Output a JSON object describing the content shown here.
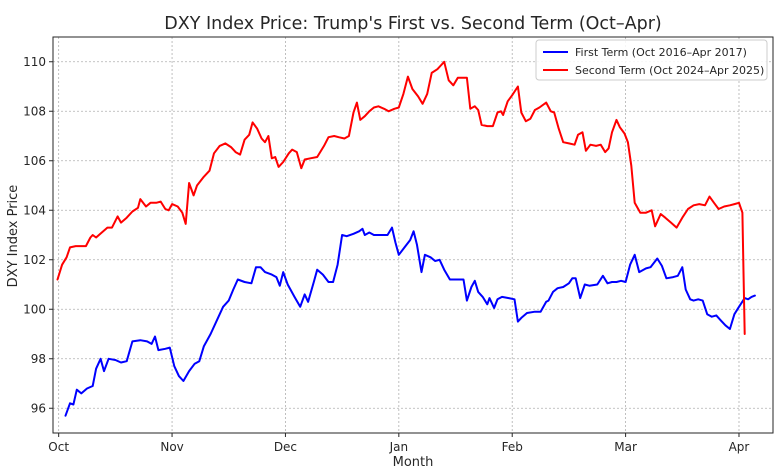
{
  "chart_data": {
    "type": "line",
    "title": "DXY Index Price: Trump's First vs. Second Term (Oct–Apr)",
    "xlabel": "Month",
    "ylabel": "DXY Index Price",
    "x_tick_labels": [
      "Oct",
      "Nov",
      "Dec",
      "Jan",
      "Feb",
      "Mar",
      "Apr"
    ],
    "x_unit": "months since Oct 1",
    "xlim": [
      -0.05,
      6.3
    ],
    "yticks": [
      96,
      98,
      100,
      102,
      104,
      106,
      108,
      110
    ],
    "ylim": [
      95.0,
      111.0
    ],
    "grid": true,
    "legend_position": "top-right",
    "series": [
      {
        "name": "First Term (Oct 2016–Apr 2017)",
        "color": "#0000ff",
        "points": [
          [
            0.06,
            95.7
          ],
          [
            0.1,
            96.2
          ],
          [
            0.13,
            96.15
          ],
          [
            0.16,
            96.75
          ],
          [
            0.2,
            96.6
          ],
          [
            0.25,
            96.8
          ],
          [
            0.3,
            96.9
          ],
          [
            0.33,
            97.6
          ],
          [
            0.37,
            98.0
          ],
          [
            0.4,
            97.5
          ],
          [
            0.44,
            98.0
          ],
          [
            0.5,
            97.95
          ],
          [
            0.55,
            97.85
          ],
          [
            0.6,
            97.9
          ],
          [
            0.65,
            98.7
          ],
          [
            0.72,
            98.75
          ],
          [
            0.78,
            98.7
          ],
          [
            0.82,
            98.6
          ],
          [
            0.85,
            98.9
          ],
          [
            0.88,
            98.35
          ],
          [
            0.94,
            98.4
          ],
          [
            0.98,
            98.45
          ],
          [
            1.02,
            97.7
          ],
          [
            1.06,
            97.3
          ],
          [
            1.1,
            97.1
          ],
          [
            1.15,
            97.5
          ],
          [
            1.2,
            97.8
          ],
          [
            1.24,
            97.9
          ],
          [
            1.28,
            98.5
          ],
          [
            1.34,
            99.0
          ],
          [
            1.4,
            99.6
          ],
          [
            1.45,
            100.1
          ],
          [
            1.5,
            100.35
          ],
          [
            1.54,
            100.8
          ],
          [
            1.58,
            101.2
          ],
          [
            1.64,
            101.1
          ],
          [
            1.7,
            101.05
          ],
          [
            1.74,
            101.7
          ],
          [
            1.78,
            101.7
          ],
          [
            1.82,
            101.5
          ],
          [
            1.88,
            101.4
          ],
          [
            1.92,
            101.3
          ],
          [
            1.95,
            100.95
          ],
          [
            1.98,
            101.5
          ],
          [
            2.02,
            101.0
          ],
          [
            2.08,
            100.5
          ],
          [
            2.13,
            100.1
          ],
          [
            2.17,
            100.6
          ],
          [
            2.2,
            100.3
          ],
          [
            2.25,
            101.1
          ],
          [
            2.28,
            101.6
          ],
          [
            2.33,
            101.4
          ],
          [
            2.38,
            101.1
          ],
          [
            2.42,
            101.1
          ],
          [
            2.46,
            101.8
          ],
          [
            2.5,
            103.0
          ],
          [
            2.54,
            102.95
          ],
          [
            2.6,
            103.05
          ],
          [
            2.65,
            103.15
          ],
          [
            2.68,
            103.25
          ],
          [
            2.7,
            103.0
          ],
          [
            2.74,
            103.1
          ],
          [
            2.78,
            103.0
          ],
          [
            2.84,
            103.0
          ],
          [
            2.9,
            103.0
          ],
          [
            2.94,
            103.3
          ],
          [
            2.97,
            102.7
          ],
          [
            3.0,
            102.2
          ],
          [
            3.05,
            102.5
          ],
          [
            3.1,
            102.8
          ],
          [
            3.13,
            103.15
          ],
          [
            3.16,
            102.6
          ],
          [
            3.2,
            101.5
          ],
          [
            3.23,
            102.2
          ],
          [
            3.28,
            102.1
          ],
          [
            3.32,
            101.95
          ],
          [
            3.36,
            102.0
          ],
          [
            3.4,
            101.6
          ],
          [
            3.45,
            101.2
          ],
          [
            3.52,
            101.2
          ],
          [
            3.57,
            101.2
          ],
          [
            3.6,
            100.35
          ],
          [
            3.64,
            100.9
          ],
          [
            3.67,
            101.15
          ],
          [
            3.7,
            100.7
          ],
          [
            3.74,
            100.5
          ],
          [
            3.78,
            100.2
          ],
          [
            3.8,
            100.45
          ],
          [
            3.84,
            100.05
          ],
          [
            3.87,
            100.4
          ],
          [
            3.91,
            100.5
          ],
          [
            3.97,
            100.45
          ],
          [
            4.02,
            100.4
          ],
          [
            4.05,
            99.5
          ],
          [
            4.08,
            99.65
          ],
          [
            4.13,
            99.85
          ],
          [
            4.2,
            99.9
          ],
          [
            4.25,
            99.9
          ],
          [
            4.3,
            100.3
          ],
          [
            4.32,
            100.35
          ],
          [
            4.36,
            100.7
          ],
          [
            4.4,
            100.85
          ],
          [
            4.45,
            100.9
          ],
          [
            4.5,
            101.05
          ],
          [
            4.53,
            101.25
          ],
          [
            4.56,
            101.25
          ],
          [
            4.6,
            100.45
          ],
          [
            4.64,
            101.0
          ],
          [
            4.68,
            100.95
          ],
          [
            4.75,
            101.0
          ],
          [
            4.8,
            101.35
          ],
          [
            4.84,
            101.05
          ],
          [
            4.88,
            101.1
          ],
          [
            4.92,
            101.1
          ],
          [
            4.96,
            101.15
          ],
          [
            5.0,
            101.1
          ],
          [
            5.04,
            101.8
          ],
          [
            5.08,
            102.2
          ],
          [
            5.12,
            101.5
          ],
          [
            5.18,
            101.65
          ],
          [
            5.22,
            101.7
          ],
          [
            5.28,
            102.05
          ],
          [
            5.32,
            101.75
          ],
          [
            5.36,
            101.25
          ],
          [
            5.42,
            101.3
          ],
          [
            5.46,
            101.35
          ],
          [
            5.5,
            101.7
          ],
          [
            5.53,
            100.8
          ],
          [
            5.57,
            100.4
          ],
          [
            5.6,
            100.35
          ],
          [
            5.64,
            100.4
          ],
          [
            5.68,
            100.35
          ],
          [
            5.72,
            99.8
          ],
          [
            5.76,
            99.7
          ],
          [
            5.8,
            99.75
          ],
          [
            5.84,
            99.55
          ],
          [
            5.88,
            99.35
          ],
          [
            5.92,
            99.2
          ],
          [
            5.96,
            99.8
          ],
          [
            6.0,
            100.1
          ],
          [
            6.05,
            100.45
          ],
          [
            6.08,
            100.4
          ],
          [
            6.11,
            100.5
          ],
          [
            6.14,
            100.55
          ]
        ]
      },
      {
        "name": "Second Term (Oct 2024–Apr 2025)",
        "color": "#ff0000",
        "points": [
          [
            -0.01,
            101.2
          ],
          [
            0.03,
            101.8
          ],
          [
            0.07,
            102.1
          ],
          [
            0.1,
            102.5
          ],
          [
            0.15,
            102.55
          ],
          [
            0.2,
            102.55
          ],
          [
            0.24,
            102.55
          ],
          [
            0.28,
            102.9
          ],
          [
            0.3,
            103.0
          ],
          [
            0.33,
            102.9
          ],
          [
            0.38,
            103.1
          ],
          [
            0.43,
            103.3
          ],
          [
            0.47,
            103.3
          ],
          [
            0.52,
            103.75
          ],
          [
            0.55,
            103.5
          ],
          [
            0.6,
            103.7
          ],
          [
            0.65,
            103.95
          ],
          [
            0.7,
            104.1
          ],
          [
            0.72,
            104.45
          ],
          [
            0.77,
            104.15
          ],
          [
            0.81,
            104.3
          ],
          [
            0.86,
            104.3
          ],
          [
            0.9,
            104.35
          ],
          [
            0.94,
            104.05
          ],
          [
            0.97,
            104.0
          ],
          [
            1.0,
            104.25
          ],
          [
            1.05,
            104.15
          ],
          [
            1.09,
            103.9
          ],
          [
            1.12,
            103.45
          ],
          [
            1.15,
            105.1
          ],
          [
            1.19,
            104.6
          ],
          [
            1.22,
            105.0
          ],
          [
            1.28,
            105.35
          ],
          [
            1.33,
            105.6
          ],
          [
            1.37,
            106.3
          ],
          [
            1.42,
            106.6
          ],
          [
            1.47,
            106.7
          ],
          [
            1.52,
            106.55
          ],
          [
            1.56,
            106.35
          ],
          [
            1.6,
            106.25
          ],
          [
            1.64,
            106.85
          ],
          [
            1.68,
            107.05
          ],
          [
            1.71,
            107.55
          ],
          [
            1.75,
            107.3
          ],
          [
            1.79,
            106.9
          ],
          [
            1.82,
            106.75
          ],
          [
            1.85,
            107.0
          ],
          [
            1.88,
            106.1
          ],
          [
            1.91,
            106.15
          ],
          [
            1.94,
            105.75
          ],
          [
            1.98,
            105.95
          ],
          [
            2.03,
            106.3
          ],
          [
            2.06,
            106.45
          ],
          [
            2.1,
            106.35
          ],
          [
            2.14,
            105.7
          ],
          [
            2.17,
            106.05
          ],
          [
            2.22,
            106.1
          ],
          [
            2.28,
            106.15
          ],
          [
            2.34,
            106.6
          ],
          [
            2.38,
            106.95
          ],
          [
            2.43,
            107.0
          ],
          [
            2.47,
            106.95
          ],
          [
            2.52,
            106.9
          ],
          [
            2.56,
            107.0
          ],
          [
            2.6,
            107.95
          ],
          [
            2.63,
            108.35
          ],
          [
            2.66,
            107.65
          ],
          [
            2.7,
            107.8
          ],
          [
            2.74,
            108.0
          ],
          [
            2.78,
            108.15
          ],
          [
            2.82,
            108.2
          ],
          [
            2.87,
            108.1
          ],
          [
            2.91,
            108.0
          ],
          [
            2.96,
            108.1
          ],
          [
            3.0,
            108.15
          ],
          [
            3.04,
            108.7
          ],
          [
            3.08,
            109.4
          ],
          [
            3.12,
            108.9
          ],
          [
            3.17,
            108.6
          ],
          [
            3.21,
            108.3
          ],
          [
            3.25,
            108.7
          ],
          [
            3.29,
            109.55
          ],
          [
            3.34,
            109.7
          ],
          [
            3.37,
            109.85
          ],
          [
            3.4,
            110.0
          ],
          [
            3.44,
            109.25
          ],
          [
            3.48,
            109.05
          ],
          [
            3.52,
            109.35
          ],
          [
            3.56,
            109.35
          ],
          [
            3.6,
            109.35
          ],
          [
            3.63,
            108.1
          ],
          [
            3.67,
            108.2
          ],
          [
            3.7,
            108.05
          ],
          [
            3.73,
            107.45
          ],
          [
            3.78,
            107.4
          ],
          [
            3.83,
            107.4
          ],
          [
            3.87,
            107.95
          ],
          [
            3.9,
            108.0
          ],
          [
            3.92,
            107.85
          ],
          [
            3.96,
            108.4
          ],
          [
            4.0,
            108.65
          ],
          [
            4.05,
            109.0
          ],
          [
            4.08,
            107.95
          ],
          [
            4.12,
            107.6
          ],
          [
            4.16,
            107.7
          ],
          [
            4.2,
            108.05
          ],
          [
            4.24,
            108.15
          ],
          [
            4.3,
            108.35
          ],
          [
            4.34,
            108.0
          ],
          [
            4.37,
            107.95
          ],
          [
            4.41,
            107.3
          ],
          [
            4.45,
            106.75
          ],
          [
            4.5,
            106.7
          ],
          [
            4.55,
            106.65
          ],
          [
            4.58,
            107.05
          ],
          [
            4.62,
            107.15
          ],
          [
            4.65,
            106.4
          ],
          [
            4.69,
            106.65
          ],
          [
            4.74,
            106.6
          ],
          [
            4.78,
            106.65
          ],
          [
            4.82,
            106.35
          ],
          [
            4.85,
            106.5
          ],
          [
            4.88,
            107.15
          ],
          [
            4.92,
            107.65
          ],
          [
            4.95,
            107.35
          ],
          [
            4.99,
            107.1
          ],
          [
            5.02,
            106.75
          ],
          [
            5.05,
            105.8
          ],
          [
            5.08,
            104.3
          ],
          [
            5.13,
            103.9
          ],
          [
            5.18,
            103.9
          ],
          [
            5.23,
            104.0
          ],
          [
            5.26,
            103.35
          ],
          [
            5.31,
            103.85
          ],
          [
            5.35,
            103.7
          ],
          [
            5.4,
            103.5
          ],
          [
            5.45,
            103.3
          ],
          [
            5.5,
            103.7
          ],
          [
            5.55,
            104.05
          ],
          [
            5.6,
            104.2
          ],
          [
            5.65,
            104.25
          ],
          [
            5.7,
            104.2
          ],
          [
            5.74,
            104.55
          ],
          [
            5.78,
            104.3
          ],
          [
            5.82,
            104.05
          ],
          [
            5.87,
            104.15
          ],
          [
            5.92,
            104.2
          ],
          [
            5.96,
            104.25
          ],
          [
            6.0,
            104.3
          ],
          [
            6.03,
            103.9
          ],
          [
            6.04,
            101.5
          ],
          [
            6.05,
            99.0
          ]
        ]
      }
    ]
  }
}
